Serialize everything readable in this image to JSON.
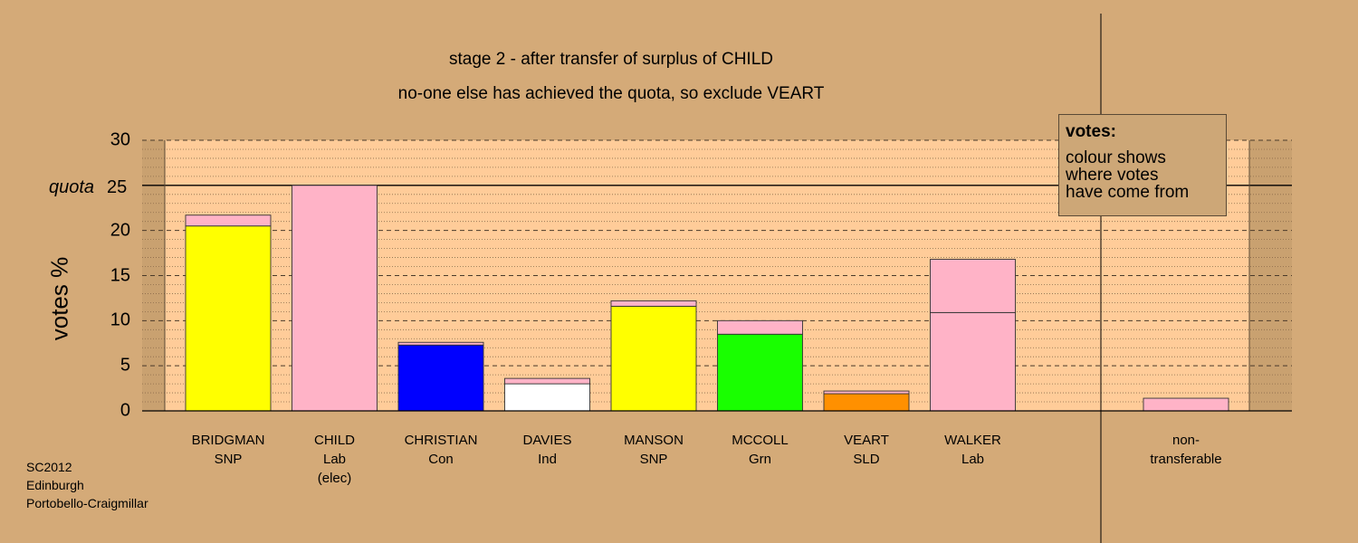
{
  "title_line1": "stage 2 - after transfer of surplus of CHILD",
  "title_line2": "no-one else has achieved the quota, so exclude VEART",
  "ylabel": "votes %",
  "quota_label": "quota",
  "quota_value": "25",
  "legend": {
    "title": "votes:",
    "lines": [
      "colour shows",
      "where votes",
      "have come from"
    ]
  },
  "footer": [
    "SC2012",
    "Edinburgh",
    "Portobello-Craigmillar"
  ],
  "colors": {
    "snp": "#FFFF00",
    "lab": "#FFB3C7",
    "con": "#0000FF",
    "ind": "#FFFFFF",
    "grn": "#19FF00",
    "sld": "#FF9000",
    "plot_bg": "#FFCC99"
  },
  "chart_data": {
    "type": "bar",
    "stacked": true,
    "ylim": [
      0,
      30
    ],
    "yticks": [
      0,
      5,
      10,
      15,
      20,
      25,
      30
    ],
    "quota": 25,
    "categories": [
      {
        "name": "BRIDGMAN",
        "party": "SNP",
        "note": "",
        "segments": [
          {
            "color": "#FFFF00",
            "value": 20.5
          },
          {
            "color": "#FFB3C7",
            "value": 1.2
          }
        ]
      },
      {
        "name": "CHILD",
        "party": "Lab",
        "note": "(elec)",
        "segments": [
          {
            "color": "#FFB3C7",
            "value": 25.0
          }
        ]
      },
      {
        "name": "CHRISTIAN",
        "party": "Con",
        "note": "",
        "segments": [
          {
            "color": "#0000FF",
            "value": 7.3
          },
          {
            "color": "#FFB3C7",
            "value": 0.3
          }
        ]
      },
      {
        "name": "DAVIES",
        "party": "Ind",
        "note": "",
        "segments": [
          {
            "color": "#FFFFFF",
            "value": 3.0
          },
          {
            "color": "#FFB3C7",
            "value": 0.6
          }
        ]
      },
      {
        "name": "MANSON",
        "party": "SNP",
        "note": "",
        "segments": [
          {
            "color": "#FFFF00",
            "value": 11.6
          },
          {
            "color": "#FFB3C7",
            "value": 0.6
          }
        ]
      },
      {
        "name": "MCCOLL",
        "party": "Grn",
        "note": "",
        "segments": [
          {
            "color": "#19FF00",
            "value": 8.5
          },
          {
            "color": "#FFB3C7",
            "value": 1.5
          }
        ]
      },
      {
        "name": "VEART",
        "party": "SLD",
        "note": "",
        "segments": [
          {
            "color": "#FF9000",
            "value": 1.9
          },
          {
            "color": "#FFB3C7",
            "value": 0.3
          }
        ]
      },
      {
        "name": "WALKER",
        "party": "Lab",
        "note": "",
        "segments": [
          {
            "color": "#FFB3C7",
            "value": 10.9
          },
          {
            "color": "#FFB3C7",
            "value": 5.9
          }
        ]
      },
      {
        "name": "non-",
        "party": "transferable",
        "note": "",
        "segments": [
          {
            "color": "#FFB3C7",
            "value": 1.4
          }
        ]
      }
    ]
  }
}
